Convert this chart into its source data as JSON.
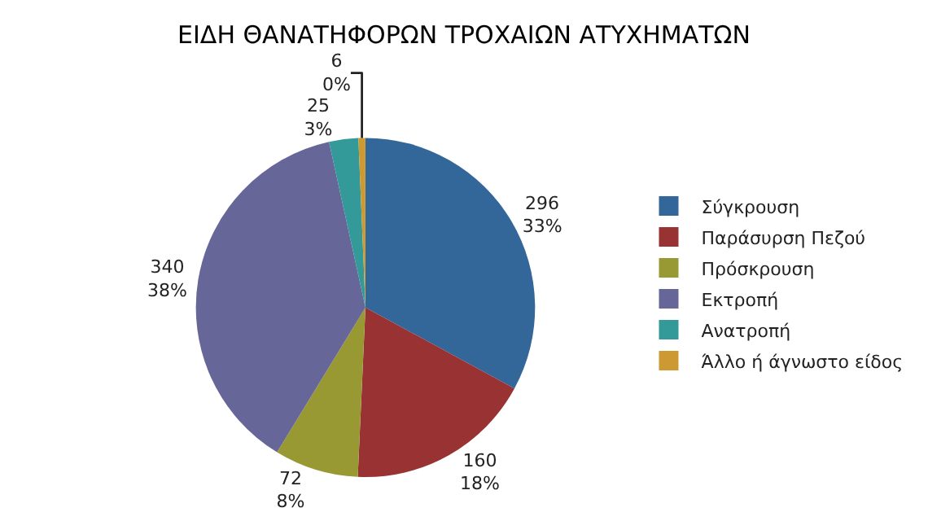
{
  "chart_data": {
    "type": "pie",
    "title": "ΕΙΔΗ ΘΑΝΑΤΗΦΟΡΩΝ ΤΡΟΧΑΙΩΝ ΑΤΥΧΗΜΑΤΩΝ",
    "categories": [
      "Σύγκρουση",
      "Παράσυρση Πεζού",
      "Πρόσκρουση",
      "Εκτροπή",
      "Ανατροπή",
      "Άλλο ή άγνωστο είδος"
    ],
    "values": [
      296,
      160,
      72,
      340,
      25,
      6
    ],
    "colors": [
      "#336699",
      "#993333",
      "#999933",
      "#666699",
      "#339999",
      "#cc9933"
    ],
    "value_labels": [
      "296\n33%",
      "160\n18%",
      "72\n8%",
      "340\n38%",
      "25\n3%",
      "6\n0%"
    ],
    "legend": "right"
  }
}
